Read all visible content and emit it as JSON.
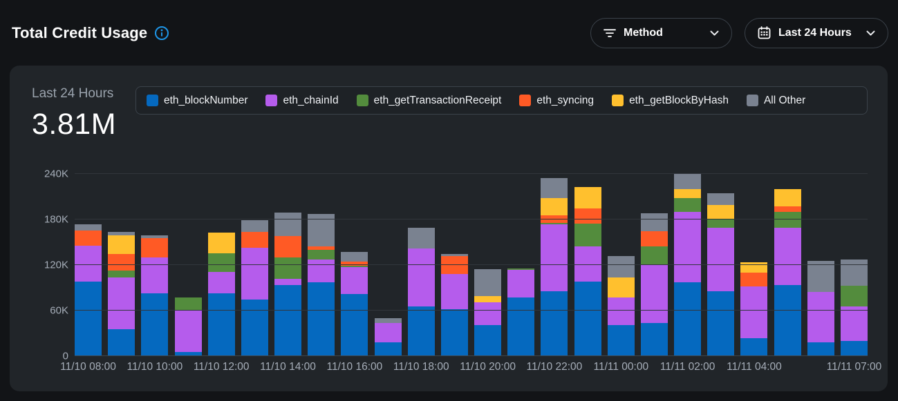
{
  "header": {
    "title": "Total Credit Usage",
    "method_filter": {
      "label": "Method"
    },
    "time_filter": {
      "label": "Last 24 Hours"
    }
  },
  "card": {
    "stat_label": "Last 24 Hours",
    "stat_value": "3.81M"
  },
  "colors": {
    "page_bg": "#121417",
    "card_bg": "#212529",
    "accent_blue": "#1e96e8",
    "grid": "#31363c",
    "tick_text": "#a6aeb9"
  },
  "chart_data": {
    "type": "bar",
    "stacked": true,
    "title": "Total Credit Usage",
    "xlabel": "",
    "ylabel": "",
    "grid": true,
    "legend_position": "top",
    "bar_count": 24,
    "ylim": [
      0,
      240000
    ],
    "y_ticks": [
      {
        "value": 0,
        "label": "0"
      },
      {
        "value": 60000,
        "label": "60K"
      },
      {
        "value": 120000,
        "label": "120K"
      },
      {
        "value": 180000,
        "label": "180K"
      },
      {
        "value": 240000,
        "label": "240K"
      }
    ],
    "x_ticks": [
      {
        "index": 0,
        "label": "11/10 08:00"
      },
      {
        "index": 2,
        "label": "11/10 10:00"
      },
      {
        "index": 4,
        "label": "11/10 12:00"
      },
      {
        "index": 6,
        "label": "11/10 14:00"
      },
      {
        "index": 8,
        "label": "11/10 16:00"
      },
      {
        "index": 10,
        "label": "11/10 18:00"
      },
      {
        "index": 12,
        "label": "11/10 20:00"
      },
      {
        "index": 14,
        "label": "11/10 22:00"
      },
      {
        "index": 16,
        "label": "11/11 00:00"
      },
      {
        "index": 18,
        "label": "11/11 02:00"
      },
      {
        "index": 20,
        "label": "11/11 04:00"
      },
      {
        "index": 23,
        "label": "11/11 07:00"
      }
    ],
    "series": [
      {
        "key": "eth_blockNumber",
        "name": "eth_blockNumber",
        "color": "#0569bf",
        "values": [
          97000,
          35000,
          82000,
          5000,
          82000,
          74000,
          93000,
          96000,
          81000,
          17000,
          65000,
          61000,
          40000,
          76000,
          85000,
          97000,
          40000,
          43000,
          96000,
          85000,
          23000,
          93000,
          17000,
          19000
        ]
      },
      {
        "key": "eth_chainId",
        "name": "eth_chainId",
        "color": "#b55cec",
        "values": [
          48000,
          68000,
          47000,
          54000,
          28000,
          68000,
          8000,
          30000,
          35000,
          26000,
          76000,
          46000,
          30000,
          37000,
          88000,
          47000,
          36000,
          77000,
          93000,
          83000,
          68000,
          75000,
          67000,
          46000
        ]
      },
      {
        "key": "eth_getTransactionReceipt",
        "name": "eth_getTransactionReceipt",
        "color": "#538c3d",
        "values": [
          0,
          9000,
          0,
          17000,
          25000,
          0,
          28000,
          13000,
          2000,
          0,
          0,
          0,
          0,
          2000,
          2000,
          30000,
          0,
          24000,
          18000,
          11000,
          0,
          21000,
          0,
          27000
        ]
      },
      {
        "key": "eth_syncing",
        "name": "eth_syncing",
        "color": "#ff5a25",
        "values": [
          20000,
          22000,
          26000,
          0,
          0,
          21000,
          28000,
          5000,
          6000,
          0,
          0,
          24000,
          0,
          0,
          10000,
          20000,
          0,
          20000,
          0,
          0,
          18000,
          7000,
          0,
          0
        ]
      },
      {
        "key": "eth_getBlockByHash",
        "name": "eth_getBlockByHash",
        "color": "#ffc02e",
        "values": [
          0,
          24000,
          0,
          0,
          27000,
          0,
          0,
          0,
          0,
          0,
          0,
          0,
          8000,
          0,
          22000,
          28000,
          27000,
          0,
          12000,
          19000,
          14000,
          23000,
          0,
          0
        ]
      },
      {
        "key": "all_other",
        "name": "All Other",
        "color": "#7a8290",
        "values": [
          7500,
          4500,
          3000,
          0,
          0,
          15000,
          31000,
          42000,
          12500,
          6000,
          27000,
          3000,
          36000,
          0,
          27000,
          0,
          28000,
          23000,
          20000,
          16000,
          0,
          0,
          41000,
          34000
        ]
      }
    ]
  }
}
